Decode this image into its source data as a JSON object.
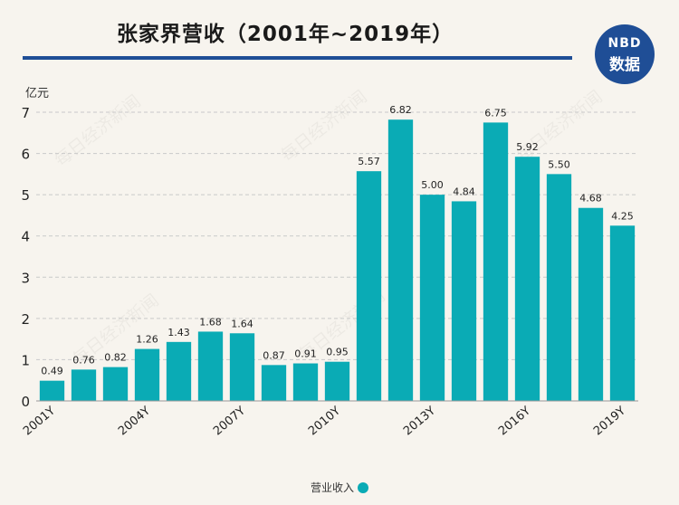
{
  "header": {
    "title": "张家界营收（2001年~2019年）",
    "logo_top": "NBD",
    "logo_bottom": "数据"
  },
  "watermark_text": "每日经济新闻",
  "colors": {
    "bar": "#0aabb5",
    "accent": "#1f4e96"
  },
  "chart_data": {
    "type": "bar",
    "title": "张家界营收（2001年~2019年）",
    "ylabel": "亿元",
    "xlabel": "",
    "ylim": [
      0,
      7
    ],
    "yticks": [
      0,
      1,
      2,
      3,
      4,
      5,
      6,
      7
    ],
    "categories": [
      "2001Y",
      "2002Y",
      "2003Y",
      "2004Y",
      "2005Y",
      "2006Y",
      "2007Y",
      "2008Y",
      "2009Y",
      "2010Y",
      "2011Y",
      "2012Y",
      "2013Y",
      "2014Y",
      "2015Y",
      "2016Y",
      "2017Y",
      "2018Y",
      "2019Y"
    ],
    "x_tick_labels": [
      "2001Y",
      "",
      "",
      "2004Y",
      "",
      "",
      "2007Y",
      "",
      "",
      "2010Y",
      "",
      "",
      "2013Y",
      "",
      "",
      "2016Y",
      "",
      "",
      "2019Y"
    ],
    "series": [
      {
        "name": "营业收入",
        "values": [
          0.49,
          0.76,
          0.82,
          1.26,
          1.43,
          1.68,
          1.64,
          0.87,
          0.91,
          0.95,
          5.57,
          6.82,
          5.0,
          4.84,
          6.75,
          5.92,
          5.5,
          4.68,
          4.25
        ],
        "labels": [
          "0.49",
          "0.76",
          "0.82",
          "1.26",
          "1.43",
          "1.68",
          "1.64",
          "0.87",
          "0.91",
          "0.95",
          "5.57",
          "6.82",
          "5.00",
          "4.84",
          "6.75",
          "5.92",
          "5.50",
          "4.68",
          "4.25"
        ]
      }
    ],
    "grid": true,
    "legend_position": "bottom-center"
  }
}
